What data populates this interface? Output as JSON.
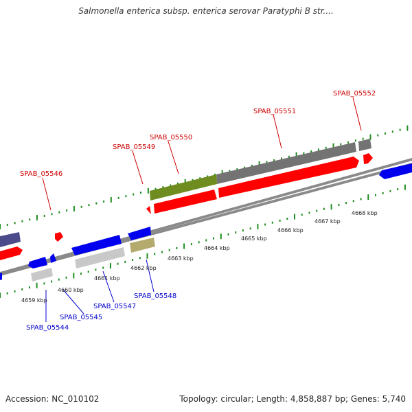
{
  "title": "Salmonella enterica subsp. enterica serovar Paratyphi B str....",
  "footer": {
    "accession": "Accession: NC_010102",
    "summary": "Topology: circular; Length: 4,858,887 bp; Genes: 5,740"
  },
  "colors": {
    "backbone": "#8a8a8a",
    "tick": "#1e8c1e",
    "label_top": "#cc0000",
    "label_bottom": "#0000cc",
    "red": "#ff0000",
    "blue": "#0000ee",
    "gray": "#737373",
    "olive": "#6e8c20",
    "navy": "#4b4b8c",
    "khaki": "#b4aa6e",
    "light_gray": "#c8c8c8"
  },
  "scale_labels": [
    "4659 kbp",
    "4660 kbp",
    "4661 kbp",
    "4662 kbp",
    "4663 kbp",
    "4664 kbp",
    "4665 kbp",
    "4666 kbp",
    "4667 kbp",
    "4668 kbp"
  ],
  "gene_labels_top": [
    "SPAB_05546",
    "SPAB_05549",
    "SPAB_05550",
    "SPAB_05551",
    "SPAB_05552"
  ],
  "gene_labels_bottom": [
    "SPAB_05544",
    "SPAB_05545",
    "SPAB_05547",
    "SPAB_05548"
  ]
}
